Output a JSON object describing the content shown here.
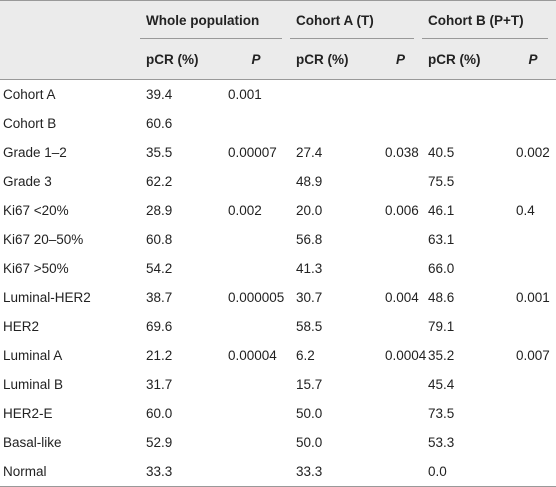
{
  "table": {
    "group_headers": [
      "Whole population",
      "Cohort A (T)",
      "Cohort B (P+T)"
    ],
    "sub_headers": [
      "pCR (%)",
      "P",
      "pCR (%)",
      "P",
      "pCR (%)",
      "P"
    ],
    "rows": [
      [
        "Cohort A",
        "39.4",
        "0.001",
        null,
        null,
        null,
        null
      ],
      [
        "Cohort B",
        "60.6",
        null,
        null,
        null,
        null,
        null
      ],
      [
        "Grade 1–2",
        "35.5",
        "0.00007",
        "27.4",
        "0.038",
        "40.5",
        "0.002"
      ],
      [
        "Grade 3",
        "62.2",
        null,
        "48.9",
        null,
        "75.5",
        null
      ],
      [
        "Ki67 <20%",
        "28.9",
        "0.002",
        "20.0",
        "0.006",
        "46.1",
        "0.4"
      ],
      [
        "Ki67 20–50%",
        "60.8",
        null,
        "56.8",
        null,
        "63.1",
        null
      ],
      [
        "Ki67 >50%",
        "54.2",
        null,
        "41.3",
        null,
        "66.0",
        null
      ],
      [
        "Luminal-HER2",
        "38.7",
        "0.000005",
        "30.7",
        "0.004",
        "48.6",
        "0.001"
      ],
      [
        "HER2",
        "69.6",
        null,
        "58.5",
        null,
        "79.1",
        null
      ],
      [
        "Luminal A",
        "21.2",
        "0.00004",
        "6.2",
        "0.0004",
        "35.2",
        "0.007"
      ],
      [
        "Luminal B",
        "31.7",
        null,
        "15.7",
        null,
        "45.4",
        null
      ],
      [
        "HER2-E",
        "60.0",
        null,
        "50.0",
        null,
        "73.5",
        null
      ],
      [
        "Basal-like",
        "52.9",
        null,
        "50.0",
        null,
        "53.3",
        null
      ],
      [
        "Normal",
        "33.3",
        null,
        "33.3",
        null,
        "0.0",
        null
      ]
    ]
  }
}
